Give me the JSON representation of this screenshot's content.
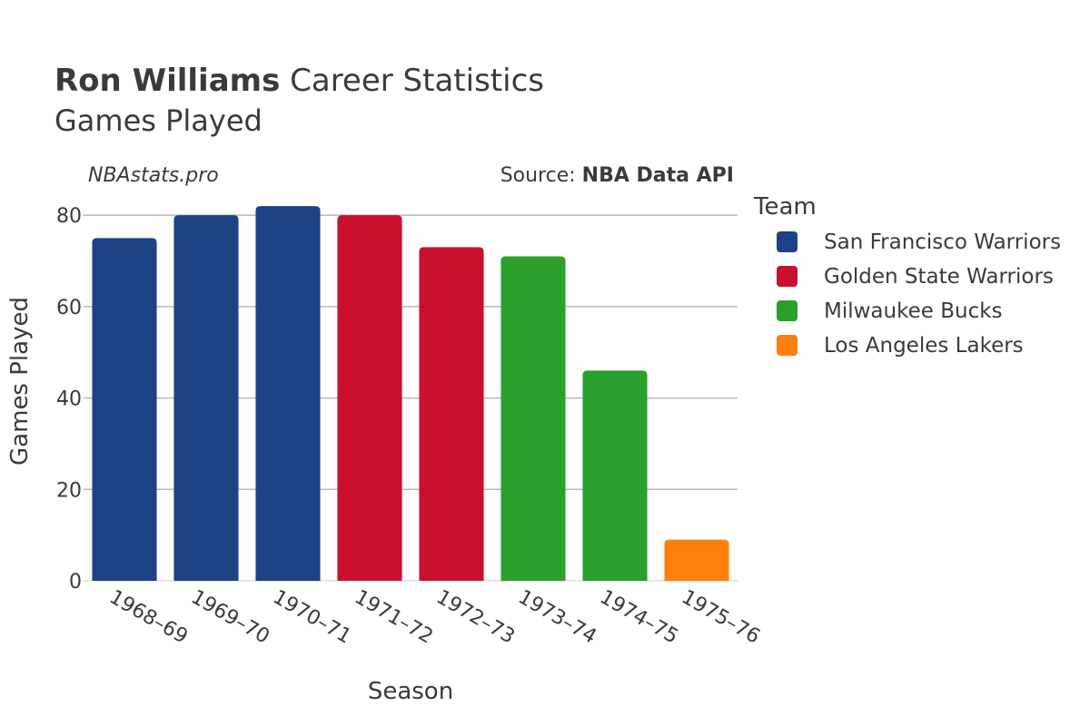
{
  "header": {
    "title_bold": "Ron Williams",
    "title_rest": " Career Statistics",
    "subtitle": "Games Played"
  },
  "watermark": "NBAstats.pro",
  "source": {
    "prefix": "Source: ",
    "name": "NBA Data API"
  },
  "legend": {
    "title": "Team",
    "items": [
      {
        "label": "San Francisco Warriors",
        "color": "#1d4185"
      },
      {
        "label": "Golden State Warriors",
        "color": "#c8102e"
      },
      {
        "label": "Milwaukee Bucks",
        "color": "#2ca02c"
      },
      {
        "label": "Los Angeles Lakers",
        "color": "#ff7f0e"
      }
    ]
  },
  "chart_data": {
    "type": "bar",
    "xlabel": "Season",
    "ylabel": "Games Played",
    "ylim": [
      0,
      85
    ],
    "yticks": [
      0,
      20,
      40,
      60,
      80
    ],
    "grid": true,
    "legend_position": "right",
    "categories": [
      "1968–69",
      "1969–70",
      "1970–71",
      "1971–72",
      "1972–73",
      "1973–74",
      "1974–75",
      "1975–76"
    ],
    "values": [
      75,
      80,
      82,
      80,
      73,
      71,
      46,
      9
    ],
    "teams": [
      "San Francisco Warriors",
      "San Francisco Warriors",
      "San Francisco Warriors",
      "Golden State Warriors",
      "Golden State Warriors",
      "Milwaukee Bucks",
      "Milwaukee Bucks",
      "Los Angeles Lakers"
    ]
  }
}
